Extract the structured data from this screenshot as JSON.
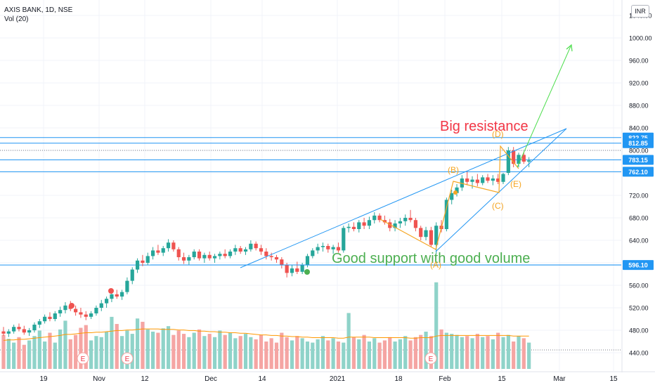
{
  "header": {
    "symbol": "AXIS BANK, 1D, NSE",
    "volume_label": "Vol (20)",
    "currency": "INR"
  },
  "colors": {
    "up": "#26a69a",
    "down": "#ef5350",
    "up_volume": "#8fd3c9",
    "down_volume": "#f5a5a3",
    "trendline": "#2196f3",
    "wave": "#f5a623",
    "resistance_text": "#f23645",
    "support_text": "#4caf50",
    "arrow": "#4cdd4c",
    "vol_ma": "#ff9800"
  },
  "chart_data": {
    "type": "candlestick",
    "title": "AXIS BANK, 1D, NSE",
    "ylim": [
      420,
      1050
    ],
    "y_ticks": [
      "440.00",
      "480.00",
      "520.00",
      "560.00",
      "600.00",
      "640.00",
      "680.00",
      "720.00",
      "760.00",
      "800.00",
      "840.00",
      "880.00",
      "920.00",
      "960.00",
      "1000.00",
      "1040.00"
    ],
    "x_ticks": [
      "19",
      "Nov",
      "12",
      "Dec",
      "14",
      "2021",
      "18",
      "Feb",
      "15",
      "Mar",
      "15"
    ],
    "price_labels": [
      "822.75",
      "812.85",
      "783.15",
      "762.10",
      "596.10"
    ],
    "level_lines": [
      822.75,
      812.85,
      783.15,
      762.1,
      596.1
    ],
    "annotations": {
      "resistance": "Big resistance",
      "support": "Good support with good volume",
      "wave_labels": [
        "(A)",
        "(B)",
        "(C)",
        "(D)",
        "(E)"
      ],
      "earnings_marker": "E"
    },
    "candles": [
      {
        "o": 478,
        "h": 486,
        "l": 470,
        "c": 474
      },
      {
        "o": 474,
        "h": 482,
        "l": 468,
        "c": 478
      },
      {
        "o": 478,
        "h": 490,
        "l": 474,
        "c": 486
      },
      {
        "o": 486,
        "h": 492,
        "l": 478,
        "c": 482
      },
      {
        "o": 482,
        "h": 488,
        "l": 472,
        "c": 476
      },
      {
        "o": 476,
        "h": 484,
        "l": 470,
        "c": 480
      },
      {
        "o": 480,
        "h": 494,
        "l": 476,
        "c": 490
      },
      {
        "o": 490,
        "h": 500,
        "l": 484,
        "c": 496
      },
      {
        "o": 496,
        "h": 508,
        "l": 492,
        "c": 504
      },
      {
        "o": 504,
        "h": 512,
        "l": 496,
        "c": 500
      },
      {
        "o": 500,
        "h": 514,
        "l": 496,
        "c": 510
      },
      {
        "o": 510,
        "h": 522,
        "l": 504,
        "c": 516
      },
      {
        "o": 516,
        "h": 530,
        "l": 510,
        "c": 524
      },
      {
        "o": 524,
        "h": 532,
        "l": 514,
        "c": 518
      },
      {
        "o": 518,
        "h": 524,
        "l": 506,
        "c": 512
      },
      {
        "o": 512,
        "h": 520,
        "l": 502,
        "c": 508
      },
      {
        "o": 508,
        "h": 514,
        "l": 498,
        "c": 504
      },
      {
        "o": 504,
        "h": 514,
        "l": 500,
        "c": 510
      },
      {
        "o": 510,
        "h": 524,
        "l": 506,
        "c": 520
      },
      {
        "o": 520,
        "h": 534,
        "l": 514,
        "c": 528
      },
      {
        "o": 528,
        "h": 540,
        "l": 520,
        "c": 536
      },
      {
        "o": 536,
        "h": 548,
        "l": 530,
        "c": 544
      },
      {
        "o": 544,
        "h": 552,
        "l": 536,
        "c": 540
      },
      {
        "o": 540,
        "h": 552,
        "l": 534,
        "c": 548
      },
      {
        "o": 548,
        "h": 574,
        "l": 544,
        "c": 568
      },
      {
        "o": 568,
        "h": 592,
        "l": 562,
        "c": 588
      },
      {
        "o": 588,
        "h": 608,
        "l": 582,
        "c": 604
      },
      {
        "o": 604,
        "h": 614,
        "l": 594,
        "c": 600
      },
      {
        "o": 600,
        "h": 618,
        "l": 596,
        "c": 612
      },
      {
        "o": 612,
        "h": 628,
        "l": 606,
        "c": 622
      },
      {
        "o": 622,
        "h": 632,
        "l": 614,
        "c": 618
      },
      {
        "o": 618,
        "h": 630,
        "l": 612,
        "c": 626
      },
      {
        "o": 626,
        "h": 642,
        "l": 620,
        "c": 636
      },
      {
        "o": 636,
        "h": 640,
        "l": 620,
        "c": 624
      },
      {
        "o": 624,
        "h": 628,
        "l": 604,
        "c": 610
      },
      {
        "o": 610,
        "h": 618,
        "l": 598,
        "c": 604
      },
      {
        "o": 604,
        "h": 614,
        "l": 596,
        "c": 610
      },
      {
        "o": 610,
        "h": 624,
        "l": 606,
        "c": 620
      },
      {
        "o": 620,
        "h": 624,
        "l": 604,
        "c": 608
      },
      {
        "o": 608,
        "h": 618,
        "l": 600,
        "c": 614
      },
      {
        "o": 614,
        "h": 620,
        "l": 604,
        "c": 608
      },
      {
        "o": 608,
        "h": 616,
        "l": 600,
        "c": 612
      },
      {
        "o": 612,
        "h": 620,
        "l": 606,
        "c": 616
      },
      {
        "o": 616,
        "h": 624,
        "l": 608,
        "c": 612
      },
      {
        "o": 612,
        "h": 624,
        "l": 608,
        "c": 620
      },
      {
        "o": 620,
        "h": 632,
        "l": 614,
        "c": 626
      },
      {
        "o": 626,
        "h": 630,
        "l": 616,
        "c": 620
      },
      {
        "o": 620,
        "h": 628,
        "l": 614,
        "c": 624
      },
      {
        "o": 624,
        "h": 640,
        "l": 620,
        "c": 634
      },
      {
        "o": 634,
        "h": 638,
        "l": 622,
        "c": 626
      },
      {
        "o": 626,
        "h": 632,
        "l": 614,
        "c": 620
      },
      {
        "o": 620,
        "h": 626,
        "l": 606,
        "c": 612
      },
      {
        "o": 612,
        "h": 618,
        "l": 604,
        "c": 610
      },
      {
        "o": 610,
        "h": 614,
        "l": 600,
        "c": 606
      },
      {
        "o": 606,
        "h": 610,
        "l": 590,
        "c": 596
      },
      {
        "o": 596,
        "h": 600,
        "l": 574,
        "c": 582
      },
      {
        "o": 582,
        "h": 596,
        "l": 576,
        "c": 590
      },
      {
        "o": 590,
        "h": 602,
        "l": 580,
        "c": 584
      },
      {
        "o": 584,
        "h": 600,
        "l": 580,
        "c": 596
      },
      {
        "o": 596,
        "h": 616,
        "l": 592,
        "c": 612
      },
      {
        "o": 612,
        "h": 626,
        "l": 608,
        "c": 622
      },
      {
        "o": 622,
        "h": 634,
        "l": 616,
        "c": 628
      },
      {
        "o": 628,
        "h": 636,
        "l": 620,
        "c": 630
      },
      {
        "o": 630,
        "h": 634,
        "l": 618,
        "c": 624
      },
      {
        "o": 624,
        "h": 632,
        "l": 616,
        "c": 628
      },
      {
        "o": 628,
        "h": 636,
        "l": 618,
        "c": 622
      },
      {
        "o": 622,
        "h": 666,
        "l": 618,
        "c": 662
      },
      {
        "o": 662,
        "h": 670,
        "l": 654,
        "c": 664
      },
      {
        "o": 664,
        "h": 672,
        "l": 656,
        "c": 660
      },
      {
        "o": 660,
        "h": 676,
        "l": 654,
        "c": 672
      },
      {
        "o": 672,
        "h": 680,
        "l": 660,
        "c": 666
      },
      {
        "o": 666,
        "h": 682,
        "l": 660,
        "c": 676
      },
      {
        "o": 676,
        "h": 690,
        "l": 670,
        "c": 684
      },
      {
        "o": 684,
        "h": 688,
        "l": 672,
        "c": 676
      },
      {
        "o": 676,
        "h": 684,
        "l": 668,
        "c": 672
      },
      {
        "o": 672,
        "h": 678,
        "l": 656,
        "c": 662
      },
      {
        "o": 662,
        "h": 676,
        "l": 656,
        "c": 670
      },
      {
        "o": 670,
        "h": 680,
        "l": 662,
        "c": 674
      },
      {
        "o": 674,
        "h": 686,
        "l": 666,
        "c": 680
      },
      {
        "o": 680,
        "h": 694,
        "l": 672,
        "c": 676
      },
      {
        "o": 676,
        "h": 680,
        "l": 656,
        "c": 662
      },
      {
        "o": 662,
        "h": 666,
        "l": 640,
        "c": 646
      },
      {
        "o": 646,
        "h": 664,
        "l": 640,
        "c": 658
      },
      {
        "o": 658,
        "h": 664,
        "l": 628,
        "c": 632
      },
      {
        "o": 632,
        "h": 672,
        "l": 616,
        "c": 666
      },
      {
        "o": 666,
        "h": 676,
        "l": 654,
        "c": 660
      },
      {
        "o": 660,
        "h": 716,
        "l": 656,
        "c": 712
      },
      {
        "o": 712,
        "h": 730,
        "l": 704,
        "c": 724
      },
      {
        "o": 724,
        "h": 740,
        "l": 718,
        "c": 734
      },
      {
        "o": 734,
        "h": 756,
        "l": 728,
        "c": 750
      },
      {
        "o": 750,
        "h": 762,
        "l": 738,
        "c": 744
      },
      {
        "o": 744,
        "h": 754,
        "l": 732,
        "c": 748
      },
      {
        "o": 748,
        "h": 758,
        "l": 736,
        "c": 742
      },
      {
        "o": 742,
        "h": 756,
        "l": 738,
        "c": 752
      },
      {
        "o": 752,
        "h": 758,
        "l": 742,
        "c": 746
      },
      {
        "o": 746,
        "h": 756,
        "l": 738,
        "c": 750
      },
      {
        "o": 750,
        "h": 758,
        "l": 740,
        "c": 744
      },
      {
        "o": 744,
        "h": 760,
        "l": 740,
        "c": 758
      },
      {
        "o": 760,
        "h": 806,
        "l": 756,
        "c": 800
      },
      {
        "o": 800,
        "h": 806,
        "l": 770,
        "c": 776
      },
      {
        "o": 776,
        "h": 796,
        "l": 770,
        "c": 792
      },
      {
        "o": 792,
        "h": 798,
        "l": 776,
        "c": 780
      },
      {
        "o": 780,
        "h": 788,
        "l": 770,
        "c": 782
      }
    ],
    "volumes": [
      62,
      55,
      48,
      58,
      44,
      52,
      60,
      70,
      50,
      66,
      48,
      72,
      88,
      54,
      62,
      75,
      80,
      52,
      60,
      58,
      68,
      95,
      82,
      60,
      70,
      64,
      92,
      86,
      72,
      68,
      66,
      74,
      78,
      62,
      70,
      64,
      58,
      66,
      72,
      60,
      64,
      58,
      70,
      62,
      66,
      56,
      60,
      64,
      58,
      54,
      62,
      50,
      56,
      48,
      66,
      58,
      52,
      60,
      56,
      50,
      48,
      54,
      60,
      52,
      56,
      50,
      48,
      102,
      58,
      54,
      62,
      50,
      56,
      48,
      52,
      58,
      50,
      54,
      60,
      52,
      58,
      62,
      68,
      60,
      158,
      72,
      66,
      64,
      62,
      58,
      60,
      56,
      64,
      58,
      60,
      54,
      66,
      58,
      62,
      50,
      60,
      56,
      48
    ],
    "vol_ma": [
      52,
      53,
      53,
      54,
      54,
      55,
      56,
      57,
      58,
      59,
      60,
      61,
      63,
      63,
      64,
      65,
      66,
      66,
      67,
      67,
      68,
      69,
      70,
      70,
      71,
      71,
      72,
      73,
      73,
      73,
      73,
      72,
      72,
      72,
      71,
      71,
      70,
      70,
      69,
      69,
      68,
      68,
      67,
      67,
      66,
      66,
      65,
      65,
      64,
      63,
      62,
      62,
      61,
      61,
      60,
      60,
      59,
      59,
      58,
      58,
      57,
      57,
      57,
      57,
      57,
      56,
      56,
      58,
      58,
      58,
      58,
      58,
      57,
      57,
      57,
      57,
      57,
      57,
      57,
      56,
      56,
      57,
      57,
      57,
      60,
      61,
      61,
      61,
      61,
      61,
      61,
      61,
      61,
      61,
      61,
      61,
      61,
      61,
      61,
      60,
      60,
      60,
      60
    ]
  }
}
